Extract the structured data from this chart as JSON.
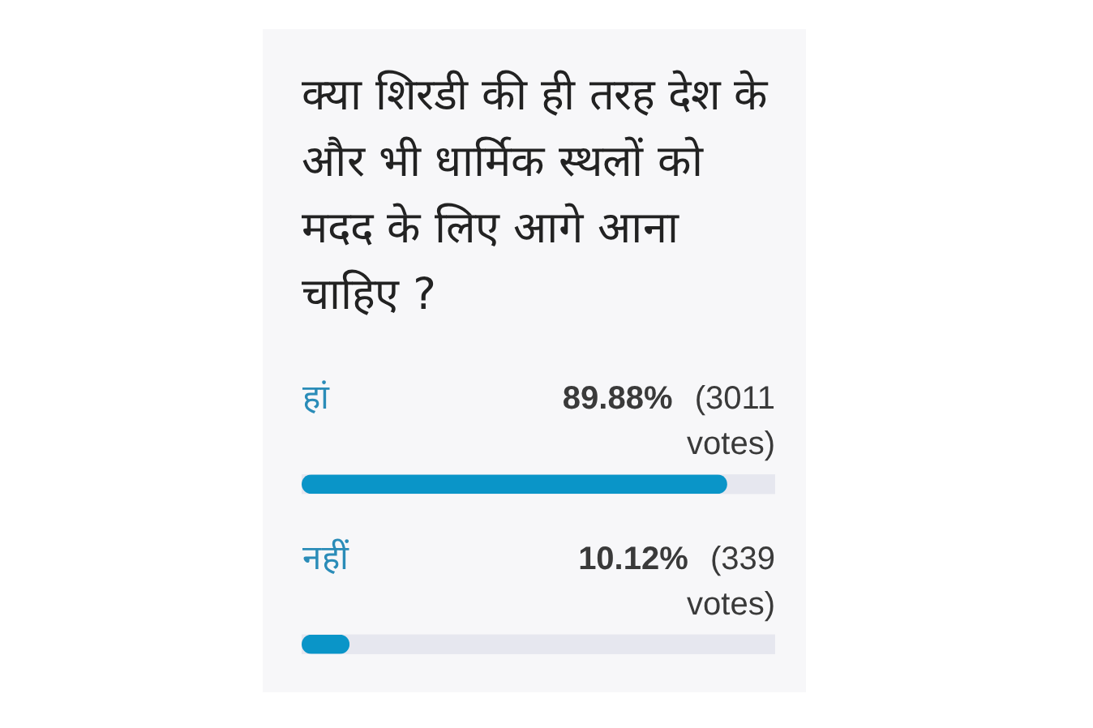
{
  "chart_data": {
    "type": "bar",
    "orientation": "horizontal",
    "title": "क्या शिरडी की ही तरह देश के और भी धार्मिक स्थलों को मदद के लिए आगे आना चाहिए ?",
    "categories": [
      "हां",
      "नहीं"
    ],
    "values": [
      89.88,
      10.12
    ],
    "value_labels": [
      "89.88% (3011 votes)",
      "10.12% (339 votes)"
    ],
    "color": "#0a95c8",
    "xlim": [
      0,
      100
    ],
    "tick_labels": "y",
    "ref_lines": [
      {
        "axis": "y",
        "value": "हां",
        "color": "#e6e7ef"
      },
      {
        "axis": "y",
        "value": "नहीं",
        "color": "#e6e7ef"
      }
    ]
  }
}
